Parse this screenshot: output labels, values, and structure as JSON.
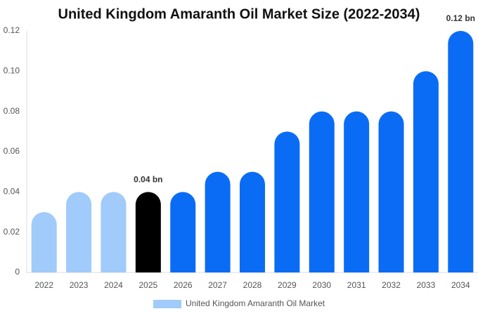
{
  "chart_data": {
    "type": "bar",
    "title": "United Kingdom Amaranth Oil Market Size (2022-2034)",
    "categories": [
      "2022",
      "2023",
      "2024",
      "2025",
      "2026",
      "2027",
      "2028",
      "2029",
      "2030",
      "2031",
      "2032",
      "2033",
      "2034"
    ],
    "series": [
      {
        "name": "United Kingdom Amaranth Oil Market",
        "color": "#a0cbfb",
        "colors": [
          "#a0cbfb",
          "#a0cbfb",
          "#a0cbfb",
          "#000000",
          "#0a6cf5",
          "#0a6cf5",
          "#0a6cf5",
          "#0a6cf5",
          "#0a6cf5",
          "#0a6cf5",
          "#0a6cf5",
          "#0a6cf5",
          "#0a6cf5"
        ],
        "values": [
          0.03,
          0.04,
          0.04,
          0.04,
          0.04,
          0.05,
          0.05,
          0.07,
          0.08,
          0.08,
          0.08,
          0.1,
          0.12
        ],
        "value_labels": [
          null,
          null,
          null,
          "0.04 bn",
          null,
          null,
          null,
          null,
          null,
          null,
          null,
          null,
          "0.12 bn"
        ]
      }
    ],
    "ylim": [
      0,
      0.12
    ],
    "yticks": [
      0,
      0.02,
      0.04,
      0.06,
      0.08,
      {
        "value": 0.1,
        "label": "0.10"
      },
      0.12
    ],
    "grid": false,
    "legend": "bottom"
  }
}
